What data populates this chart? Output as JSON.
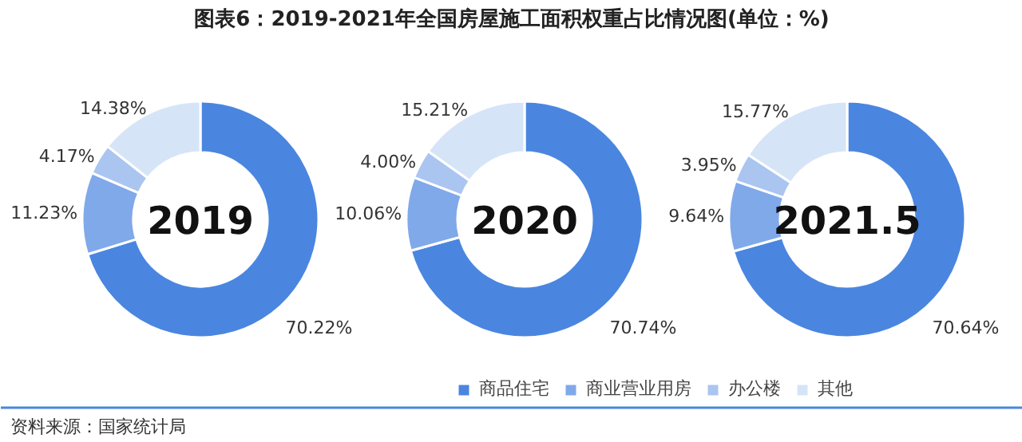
{
  "chart_data": [
    {
      "type": "donut",
      "title": "2019",
      "annotations": [
        "图表6：2019-2021年全国房屋施工面积权重占比情况图(单位：%)",
        "资料来源：国家统计局"
      ],
      "categories": [
        "商品住宅",
        "商业营业用房",
        "办公楼",
        "其他"
      ],
      "values": [
        70.22,
        11.23,
        4.17,
        14.38
      ],
      "colors": [
        "#4a86e0",
        "#80a9ea",
        "#aac5f0",
        "#d6e4f8"
      ],
      "value_labels": [
        "70.22%",
        "11.23%",
        "4.17%",
        "14.38%"
      ],
      "legend": "bottom"
    },
    {
      "type": "donut",
      "title": "2020",
      "values": [
        70.74,
        10.06,
        4.0,
        15.21
      ],
      "colors": [
        "#4a86e0",
        "#80a9ea",
        "#aac5f0",
        "#d6e4f8"
      ],
      "value_labels": [
        "70.74%",
        "10.06%",
        "4.00%",
        "15.21%"
      ]
    },
    {
      "type": "donut",
      "title": "2021.5",
      "values": [
        70.64,
        9.64,
        3.95,
        15.77
      ],
      "colors": [
        "#4a86e0",
        "#80a9ea",
        "#aac5f0",
        "#d6e4f8"
      ],
      "value_labels": [
        "70.64%",
        "9.64%",
        "3.95%",
        "15.77%"
      ]
    }
  ]
}
